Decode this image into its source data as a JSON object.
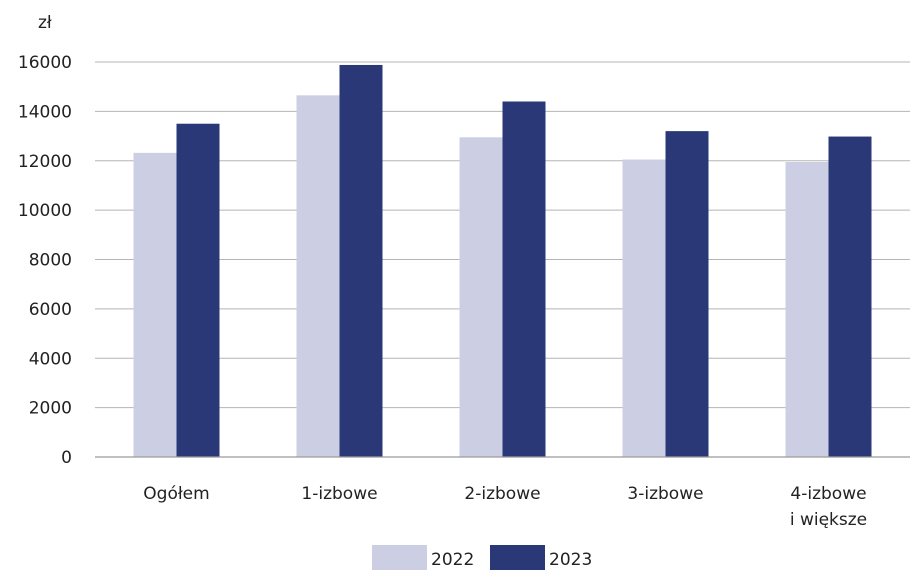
{
  "chart_data": {
    "type": "bar",
    "unit_label": "zł",
    "categories": [
      [
        "Ogółem"
      ],
      [
        "1-izbowe"
      ],
      [
        "2-izbowe"
      ],
      [
        "3-izbowe"
      ],
      [
        "4-izbowe",
        "i większe"
      ]
    ],
    "series": [
      {
        "name": "2022",
        "color": "#cccfe4",
        "values": [
          12320,
          14650,
          12950,
          12050,
          11950
        ]
      },
      {
        "name": "2023",
        "color": "#2a3878",
        "values": [
          13500,
          15880,
          14400,
          13200,
          12980
        ]
      }
    ],
    "ylim": [
      0,
      16000
    ],
    "yticks": [
      "0",
      "2000",
      "4000",
      "6000",
      "8000",
      "10000",
      "12000",
      "14000",
      "16000"
    ],
    "grid": true,
    "legend_position": "bottom"
  }
}
